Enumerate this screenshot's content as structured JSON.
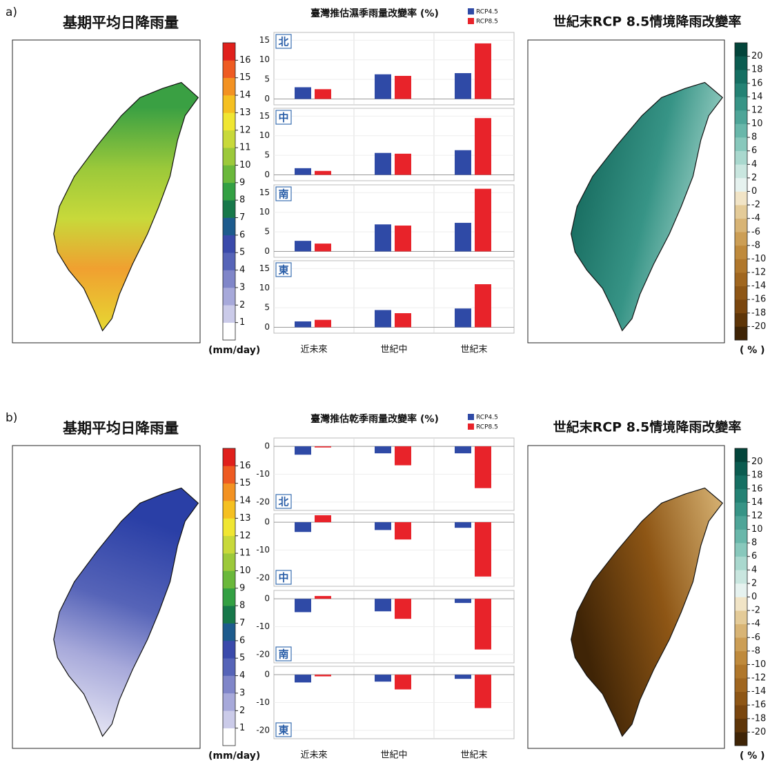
{
  "figure": [
    {
      "label": "a)",
      "map_title": "基期平均日降雨量",
      "change_title": "世紀末RCP 8.5情境降雨改變率"
    },
    {
      "label": "b)",
      "map_title": "基期平均日降雨量",
      "change_title": "世紀末RCP 8.5情境降雨改變率"
    }
  ],
  "rain_colorbar": {
    "ticks": [
      1,
      2,
      3,
      4,
      5,
      6,
      7,
      8,
      9,
      10,
      11,
      12,
      13,
      14,
      15,
      16
    ],
    "unit": "(mm/day)",
    "colors": [
      "#ffffff",
      "#cbcbe9",
      "#a7a9da",
      "#8086c9",
      "#5664b8",
      "#3a4aab",
      "#1d5b8d",
      "#17784a",
      "#33a043",
      "#6ab83b",
      "#9cc93a",
      "#c8d93a",
      "#f0e632",
      "#f5c021",
      "#f39222",
      "#ee5b22",
      "#e0201c"
    ]
  },
  "change_colorbar": {
    "ticks": [
      -20,
      -18,
      -16,
      -14,
      -12,
      -10,
      -8,
      -6,
      -4,
      -2,
      0,
      2,
      4,
      6,
      8,
      10,
      12,
      14,
      16,
      18,
      20
    ],
    "unit": "( % )",
    "colors": [
      "#3f2406",
      "#5e3508",
      "#7a460e",
      "#8e5615",
      "#a0661f",
      "#b0772b",
      "#bf8a3c",
      "#cc9e55",
      "#d8b475",
      "#e4cb98",
      "#f1e4c6",
      "#e6f2ef",
      "#c9e6df",
      "#a9d8ce",
      "#88c8bc",
      "#69b7aa",
      "#4ea598",
      "#379486",
      "#248274",
      "#156f62",
      "#0b5c50",
      "#03453b"
    ]
  },
  "chart_data": [
    {
      "type": "bar",
      "title": "臺灣推估濕季雨量改變率 (%)",
      "categories": [
        "近未來",
        "世紀中",
        "世紀末"
      ],
      "series": [
        {
          "name": "RCP4.5",
          "color": "#2f4aa6"
        },
        {
          "name": "RCP8.5",
          "color": "#e8232a"
        }
      ],
      "ylim": [
        -1.5,
        17
      ],
      "yticks": [
        0,
        5,
        10,
        15
      ],
      "panels": [
        {
          "label": "北",
          "values": [
            [
              3.0,
              6.3,
              6.6
            ],
            [
              2.5,
              5.9,
              14.2
            ]
          ]
        },
        {
          "label": "中",
          "values": [
            [
              1.7,
              5.6,
              6.3
            ],
            [
              1.0,
              5.4,
              14.5
            ]
          ]
        },
        {
          "label": "南",
          "values": [
            [
              2.7,
              6.9,
              7.3
            ],
            [
              2.0,
              6.6,
              16.0
            ]
          ]
        },
        {
          "label": "東",
          "values": [
            [
              1.5,
              4.4,
              4.8
            ],
            [
              1.9,
              3.6,
              11.0
            ]
          ]
        }
      ]
    },
    {
      "type": "bar",
      "title": "臺灣推估乾季雨量改變率 (%)",
      "categories": [
        "近未來",
        "世紀中",
        "世紀末"
      ],
      "series": [
        {
          "name": "RCP4.5",
          "color": "#2f4aa6"
        },
        {
          "name": "RCP8.5",
          "color": "#e8232a"
        }
      ],
      "ylim": [
        -23,
        3
      ],
      "yticks": [
        0,
        -10,
        -20
      ],
      "panels": [
        {
          "label": "北",
          "values": [
            [
              -3.0,
              -2.5,
              -2.5
            ],
            [
              -0.4,
              -6.8,
              -15.0
            ]
          ]
        },
        {
          "label": "中",
          "values": [
            [
              -3.5,
              -2.8,
              -2.0
            ],
            [
              2.5,
              -6.2,
              -19.5
            ]
          ]
        },
        {
          "label": "南",
          "values": [
            [
              -4.8,
              -4.5,
              -1.5
            ],
            [
              1.0,
              -7.2,
              -18.2
            ]
          ]
        },
        {
          "label": "東",
          "values": [
            [
              -2.8,
              -2.5,
              -1.5
            ],
            [
              -0.6,
              -5.3,
              -12.0
            ]
          ]
        }
      ]
    }
  ]
}
